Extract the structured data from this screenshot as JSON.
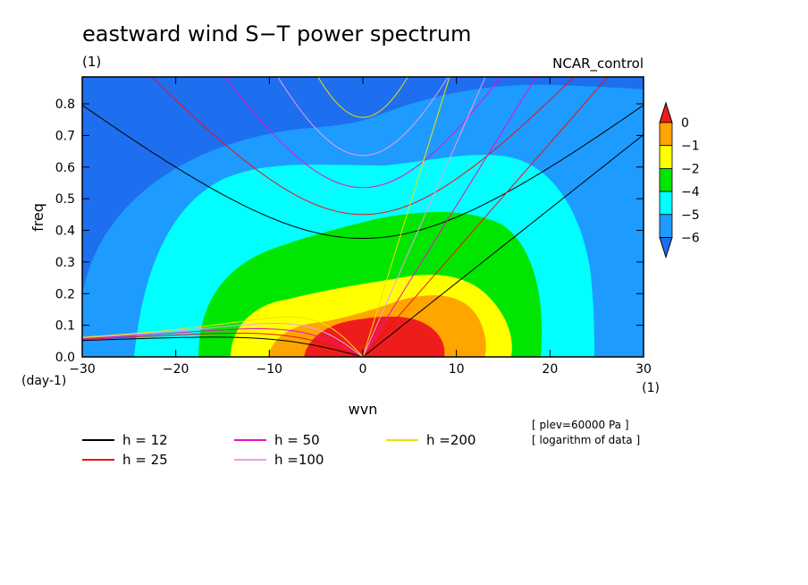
{
  "chart_data": {
    "type": "heatmap",
    "title": "eastward wind S−T power spectrum",
    "subtitle_left": "(1)",
    "subtitle_right": "NCAR_control",
    "xlabel": "wvn",
    "ylabel": "freq",
    "x_unit": "(1)",
    "y_unit": "(day-1)",
    "xlim": [
      -30,
      30
    ],
    "ylim": [
      0,
      0.885
    ],
    "x_ticks": [
      -30,
      -20,
      -10,
      0,
      10,
      20,
      30
    ],
    "x_tick_labels": [
      "−30",
      "−20",
      "−10",
      "0",
      "10",
      "20",
      "30"
    ],
    "y_ticks": [
      0,
      0.1,
      0.2,
      0.3,
      0.4,
      0.5,
      0.6,
      0.7,
      0.8
    ],
    "y_tick_labels": [
      "0.0",
      "0.1",
      "0.2",
      "0.3",
      "0.4",
      "0.5",
      "0.6",
      "0.7",
      "0.8"
    ],
    "colorbar": {
      "levels": [
        0,
        -1,
        -2,
        -4,
        -5,
        -6
      ],
      "labels": [
        "0",
        "−1",
        "−2",
        "−4",
        "−5",
        "−6"
      ],
      "colors": [
        "#ef1c1c",
        "#ffa500",
        "#ffff00",
        "#00e600",
        "#00ffff",
        "#1e9bff",
        "#1e6ef0"
      ]
    },
    "contour_fill": {
      "description_levels": "filled regions of log10 power",
      "max_bin": {
        "x": 0,
        "y": 0.0
      }
    },
    "dispersion_curves": [
      {
        "name": "h = 12",
        "color": "#000000",
        "equivalent_depth": 12
      },
      {
        "name": "h = 25",
        "color": "#ee1111",
        "equivalent_depth": 25
      },
      {
        "name": "h = 50",
        "color": "#e810c0",
        "equivalent_depth": 50
      },
      {
        "name": "h =100",
        "color": "#e8a0e8",
        "equivalent_depth": 100
      },
      {
        "name": "h =200",
        "color": "#f0e000",
        "equivalent_depth": 200
      }
    ],
    "notes": [
      "[ plev=60000 Pa ]",
      "[ logarithm of data ]"
    ]
  }
}
